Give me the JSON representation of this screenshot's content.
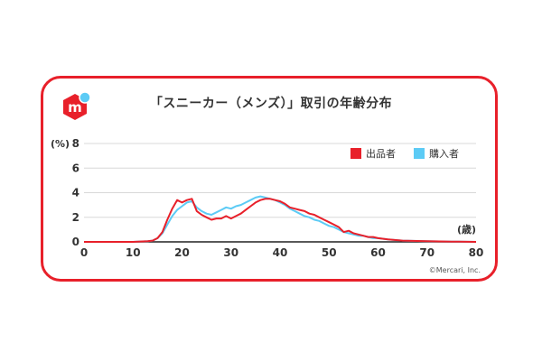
{
  "title": "「スニーカー（メンズ）」取引の年齢分布",
  "copyright": "©Mercari, Inc.",
  "colors": {
    "border": "#e8202a",
    "seller": "#e8202a",
    "buyer": "#5ccbf5",
    "logo": "#e8202a",
    "logo_dot": "#5ccbf5"
  },
  "chart_data": {
    "type": "line",
    "title": "「スニーカー（メンズ）」取引の年齢分布",
    "xlabel": "(歳)",
    "ylabel": "(%)",
    "xlim": [
      0,
      80
    ],
    "ylim": [
      0,
      8
    ],
    "x_ticks": [
      "0",
      "10",
      "20",
      "30",
      "40",
      "50",
      "60",
      "70",
      "80"
    ],
    "y_ticks": [
      "0",
      "2",
      "4",
      "6",
      "8"
    ],
    "grid": true,
    "legend_position": "top-right",
    "series": [
      {
        "name": "出品者",
        "color": "#e8202a",
        "x": [
          0,
          10,
          13,
          14,
          15,
          16,
          17,
          18,
          19,
          20,
          21,
          22,
          23,
          24,
          25,
          26,
          27,
          28,
          29,
          30,
          31,
          32,
          33,
          34,
          35,
          36,
          37,
          38,
          39,
          40,
          41,
          42,
          43,
          44,
          45,
          46,
          47,
          48,
          49,
          50,
          51,
          52,
          53,
          54,
          55,
          56,
          57,
          58,
          59,
          60,
          62,
          65,
          70,
          75,
          80
        ],
        "y": [
          0,
          0,
          0.05,
          0.1,
          0.3,
          0.8,
          1.8,
          2.7,
          3.4,
          3.2,
          3.4,
          3.5,
          2.5,
          2.2,
          2.0,
          1.8,
          1.9,
          1.9,
          2.1,
          1.9,
          2.1,
          2.3,
          2.6,
          2.9,
          3.2,
          3.4,
          3.5,
          3.5,
          3.4,
          3.3,
          3.1,
          2.8,
          2.7,
          2.6,
          2.5,
          2.3,
          2.2,
          2.0,
          1.8,
          1.6,
          1.4,
          1.2,
          0.8,
          0.9,
          0.7,
          0.6,
          0.5,
          0.4,
          0.4,
          0.3,
          0.2,
          0.1,
          0.05,
          0.02,
          0
        ]
      },
      {
        "name": "購入者",
        "color": "#5ccbf5",
        "x": [
          0,
          10,
          13,
          14,
          15,
          16,
          17,
          18,
          19,
          20,
          21,
          22,
          23,
          24,
          25,
          26,
          27,
          28,
          29,
          30,
          31,
          32,
          33,
          34,
          35,
          36,
          37,
          38,
          39,
          40,
          41,
          42,
          43,
          44,
          45,
          46,
          47,
          48,
          49,
          50,
          51,
          52,
          53,
          54,
          55,
          56,
          57,
          58,
          59,
          60,
          62,
          65,
          70,
          75,
          80
        ],
        "y": [
          0,
          0,
          0.05,
          0.1,
          0.3,
          0.7,
          1.4,
          2.1,
          2.6,
          2.9,
          3.2,
          3.3,
          2.8,
          2.5,
          2.3,
          2.2,
          2.4,
          2.6,
          2.8,
          2.7,
          2.9,
          3.0,
          3.2,
          3.4,
          3.6,
          3.7,
          3.6,
          3.5,
          3.4,
          3.2,
          3.0,
          2.7,
          2.5,
          2.3,
          2.1,
          2.0,
          1.8,
          1.7,
          1.5,
          1.3,
          1.2,
          1.0,
          0.8,
          0.7,
          0.6,
          0.5,
          0.5,
          0.4,
          0.3,
          0.3,
          0.2,
          0.1,
          0.05,
          0.02,
          0
        ]
      }
    ]
  }
}
